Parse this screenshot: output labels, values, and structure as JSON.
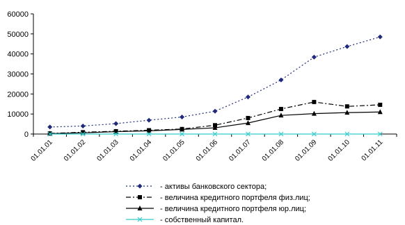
{
  "chart_data": {
    "type": "line",
    "categories": [
      "01.01.01",
      "01.01.02",
      "01.01.03",
      "01.01.04",
      "01.01.05",
      "01.01.06",
      "01.01.07",
      "01.01.08",
      "01.01.09",
      "01.01.10",
      "01.01.11"
    ],
    "ylim": [
      0,
      60000
    ],
    "yticks": [
      "0",
      "10000",
      "20000",
      "30000",
      "40000",
      "50000",
      "60000"
    ],
    "grid": false,
    "legend_position": "bottom",
    "series": [
      {
        "name": "- активы банковского сектора;",
        "color": "#1F2A7A",
        "line_style": "dotted",
        "marker": "diamond",
        "values": [
          3500,
          4000,
          5200,
          6900,
          8500,
          11400,
          18500,
          27000,
          38400,
          43700,
          48500
        ]
      },
      {
        "name": "- величина кредитного портфеля физ.лиц;",
        "color": "#000000",
        "line_style": "dash-dot",
        "marker": "square",
        "values": [
          300,
          900,
          1400,
          1900,
          2500,
          4400,
          8000,
          12500,
          16000,
          13800,
          14600
        ]
      },
      {
        "name": "- величина кредитного портфеля юр.лиц;",
        "color": "#000000",
        "line_style": "solid",
        "marker": "triangle",
        "values": [
          200,
          600,
          1200,
          1600,
          2300,
          3100,
          5500,
          9300,
          10200,
          10700,
          11000
        ]
      },
      {
        "name": "- собственный капитал.",
        "color": "#33CCCC",
        "line_style": "solid",
        "marker": "x",
        "values": [
          0,
          0,
          0,
          0,
          0,
          0,
          0,
          0,
          0,
          0,
          0
        ]
      }
    ]
  }
}
